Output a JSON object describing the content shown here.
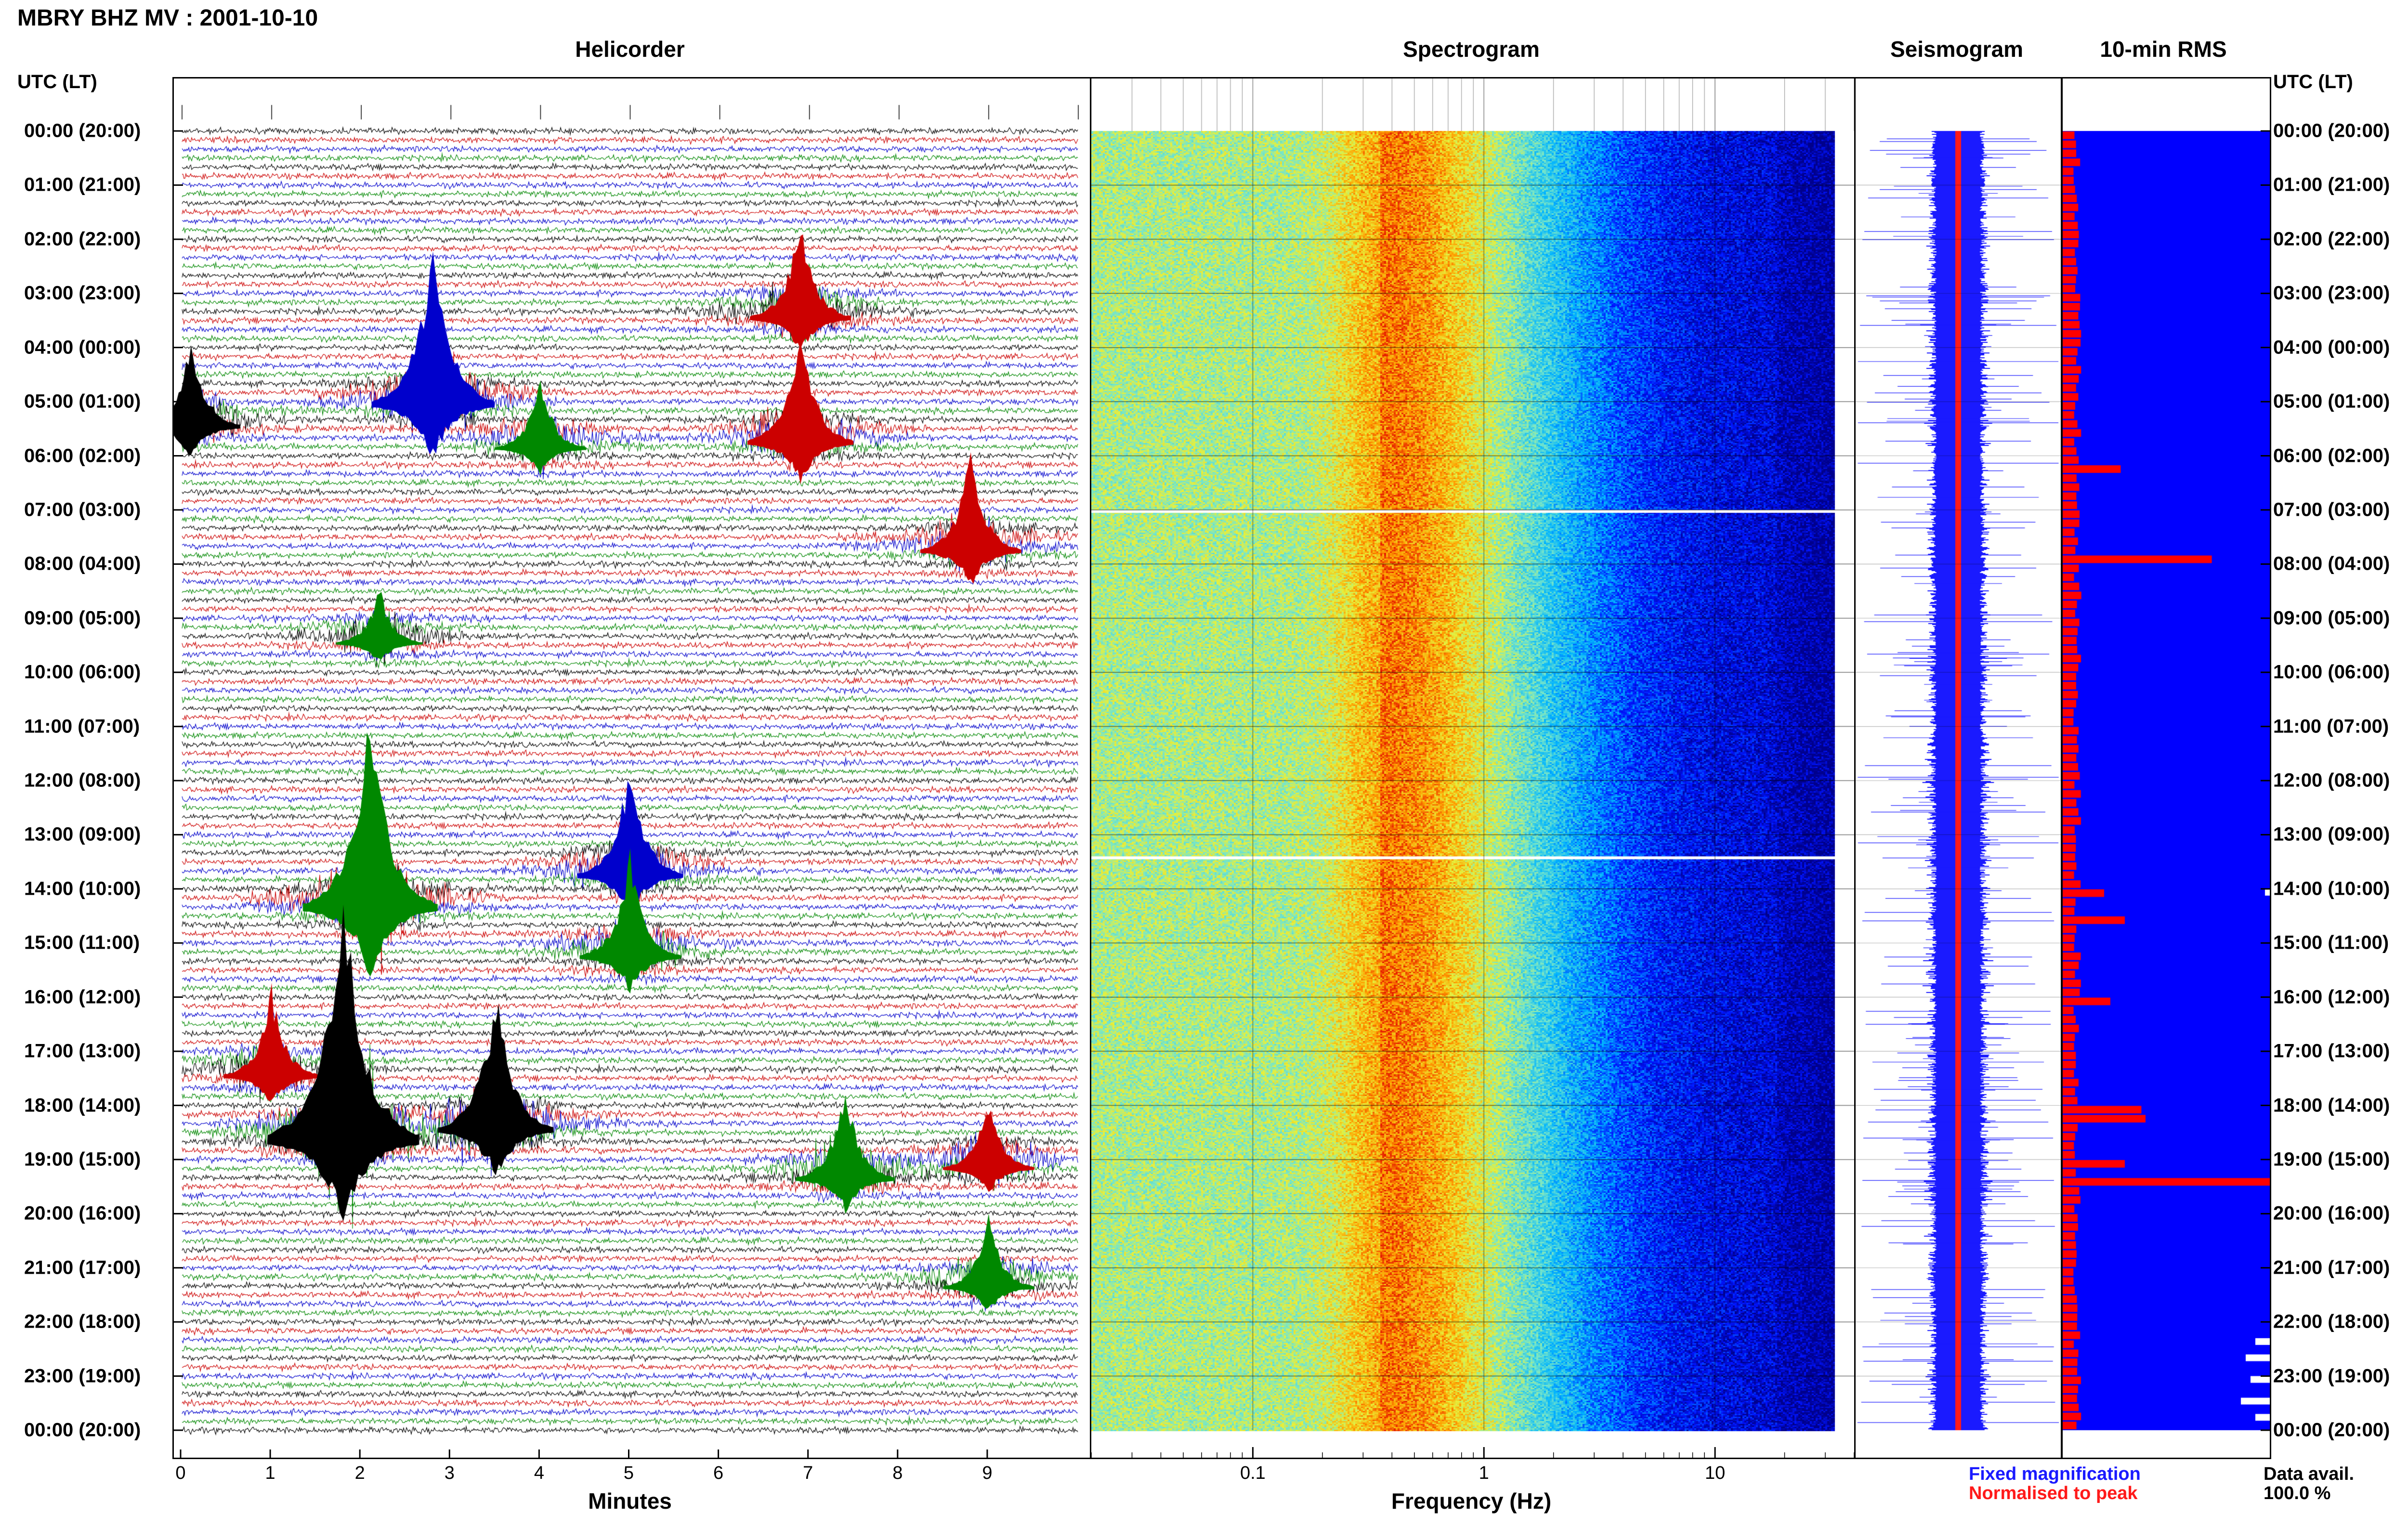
{
  "header": {
    "title": "MBRY BHZ MV : 2001-10-10"
  },
  "panels": {
    "helicorder": "Helicorder",
    "spectrogram": "Spectrogram",
    "seismogram": "Seismogram",
    "rms": "10-min RMS"
  },
  "axes": {
    "left_corner": "UTC (LT)",
    "right_corner": "UTC (LT)",
    "minutes_label": "Minutes",
    "frequency_label": "Frequency (Hz)"
  },
  "time_labels": [
    "00:00 (20:00)",
    "01:00 (21:00)",
    "02:00 (22:00)",
    "03:00 (23:00)",
    "04:00 (00:00)",
    "05:00 (01:00)",
    "06:00 (02:00)",
    "07:00 (03:00)",
    "08:00 (04:00)",
    "09:00 (05:00)",
    "10:00 (06:00)",
    "11:00 (07:00)",
    "12:00 (08:00)",
    "13:00 (09:00)",
    "14:00 (10:00)",
    "15:00 (11:00)",
    "16:00 (12:00)",
    "17:00 (13:00)",
    "18:00 (14:00)",
    "19:00 (15:00)",
    "20:00 (16:00)",
    "21:00 (17:00)",
    "22:00 (18:00)",
    "23:00 (19:00)",
    "00:00 (20:00)"
  ],
  "legend": {
    "fixed": "Fixed magnification",
    "normalised": "Normalised to peak"
  },
  "availability": {
    "label": "Data avail.",
    "value": "100.0 %"
  },
  "colors": {
    "trace_cycle": [
      "#000000",
      "#cc0000",
      "#0000cc",
      "#008800"
    ],
    "fixed": "#1a1aff",
    "normalised": "#ff1a1a",
    "rms_background": "#0000ff",
    "rms_bar": "#ff0000"
  },
  "chart_data": [
    {
      "type": "line",
      "title": "Helicorder",
      "xlabel": "Minutes",
      "x_ticks": [
        "0",
        "1",
        "2",
        "3",
        "4",
        "5",
        "6",
        "7",
        "8",
        "9"
      ],
      "xlim": [
        0,
        10
      ],
      "rows": 144,
      "events": [
        {
          "hour": 3.3,
          "minute": 6.9,
          "amp": 1.4,
          "color": 1
        },
        {
          "hour": 4.9,
          "minute": 2.8,
          "amp": 2.3,
          "color": 2
        },
        {
          "hour": 5.6,
          "minute": 6.9,
          "amp": 1.6,
          "color": 1
        },
        {
          "hour": 5.7,
          "minute": 4.0,
          "amp": 1.0,
          "color": 3
        },
        {
          "hour": 5.3,
          "minute": 0.1,
          "amp": 1.3,
          "color": 0
        },
        {
          "hour": 7.6,
          "minute": 8.8,
          "amp": 1.4,
          "color": 1
        },
        {
          "hour": 9.3,
          "minute": 2.2,
          "amp": 0.8,
          "color": 3
        },
        {
          "hour": 13.6,
          "minute": 5.0,
          "amp": 1.6,
          "color": 2
        },
        {
          "hour": 14.2,
          "minute": 2.1,
          "amp": 2.8,
          "color": 3
        },
        {
          "hour": 15.1,
          "minute": 5.0,
          "amp": 1.4,
          "color": 3
        },
        {
          "hour": 17.3,
          "minute": 1.0,
          "amp": 1.2,
          "color": 1
        },
        {
          "hour": 18.5,
          "minute": 1.8,
          "amp": 3.5,
          "color": 0
        },
        {
          "hour": 18.3,
          "minute": 3.5,
          "amp": 2.0,
          "color": 0
        },
        {
          "hour": 19.2,
          "minute": 7.4,
          "amp": 1.3,
          "color": 3
        },
        {
          "hour": 19.0,
          "minute": 9.0,
          "amp": 1.0,
          "color": 1
        },
        {
          "hour": 21.2,
          "minute": 9.0,
          "amp": 1.0,
          "color": 3
        }
      ]
    },
    {
      "type": "heatmap",
      "title": "Spectrogram",
      "xlabel": "Frequency (Hz)",
      "x_scale": "log",
      "x_ticks": [
        "0.1",
        "1",
        "10"
      ],
      "xlim": [
        0.02,
        40
      ],
      "peak_frequency_hz": 0.35,
      "upper_limit_hz": 33
    },
    {
      "type": "line",
      "title": "Seismogram",
      "series": [
        {
          "name": "Fixed magnification",
          "color": "#1a1aff"
        },
        {
          "name": "Normalised to peak",
          "color": "#ff1a1a"
        }
      ]
    },
    {
      "type": "bar",
      "title": "10-min RMS",
      "unit_hours_per_bar": 0.1667,
      "peak_bars_hours": [
        6.1,
        6.2,
        7.8,
        14.0,
        14.5,
        16.0,
        18.0,
        18.2,
        19.0,
        19.4
      ],
      "peak_values": [
        0.35,
        0.28,
        0.72,
        0.2,
        0.3,
        0.23,
        0.38,
        0.4,
        0.3,
        1.0
      ]
    }
  ]
}
